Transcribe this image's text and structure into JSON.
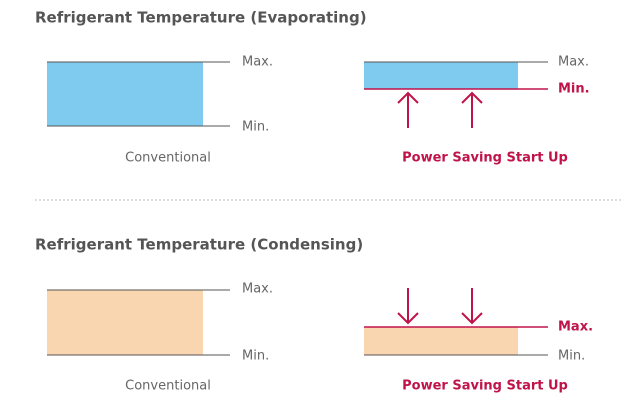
{
  "sections": [
    {
      "title": "Refrigerant Temperature (Evaporating)",
      "panels": [
        {
          "max": "Max.",
          "min": "Min.",
          "caption": "Conventional"
        },
        {
          "max": "Max.",
          "min": "Min.",
          "caption": "Power Saving Start Up"
        }
      ]
    },
    {
      "title": "Refrigerant Temperature (Condensing)",
      "panels": [
        {
          "max": "Max.",
          "min": "Min.",
          "caption": "Conventional"
        },
        {
          "max": "Max.",
          "min": "Min.",
          "caption": "Power Saving Start Up"
        }
      ]
    }
  ]
}
